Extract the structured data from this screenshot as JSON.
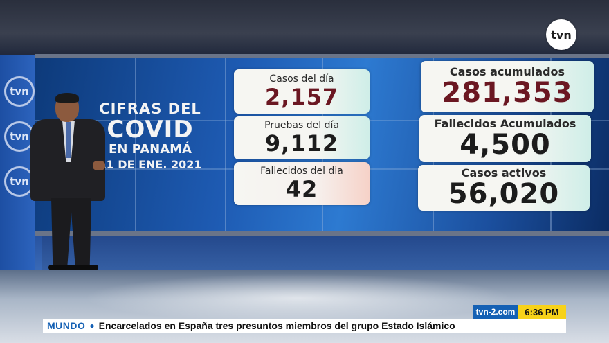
{
  "broadcast": {
    "channel_logo": "tvn",
    "side_logos": [
      "tvn",
      "tvn",
      "tvn"
    ]
  },
  "title_panel": {
    "line1": "CIFRAS DEL",
    "line2": "COVID",
    "line3": "EN PANAMÁ",
    "line4": "11 DE ENE. 2021"
  },
  "stats": {
    "daily_cases": {
      "label": "Casos del día",
      "value": "2,157"
    },
    "daily_tests": {
      "label": "Pruebas del día",
      "value": "9,112"
    },
    "daily_deaths": {
      "label": "Fallecidos del dia",
      "value": "42"
    },
    "cumulative_cases": {
      "label": "Casos acumulados",
      "value": "281,353"
    },
    "cumulative_deaths": {
      "label": "Fallecidos Acumulados",
      "value": "4,500"
    },
    "active_cases": {
      "label": "Casos activos",
      "value": "56,020"
    }
  },
  "ticker": {
    "site": "tvn-2.com",
    "time": "6:36 PM",
    "section": "MUNDO",
    "bullet": "●",
    "headline": "Encarcelados en España tres presuntos miembros del grupo Estado Islámico"
  },
  "colors": {
    "ticker_blue": "#1460b4",
    "ticker_yellow": "#f7d21a",
    "cumulative_red": "#6b1722"
  }
}
